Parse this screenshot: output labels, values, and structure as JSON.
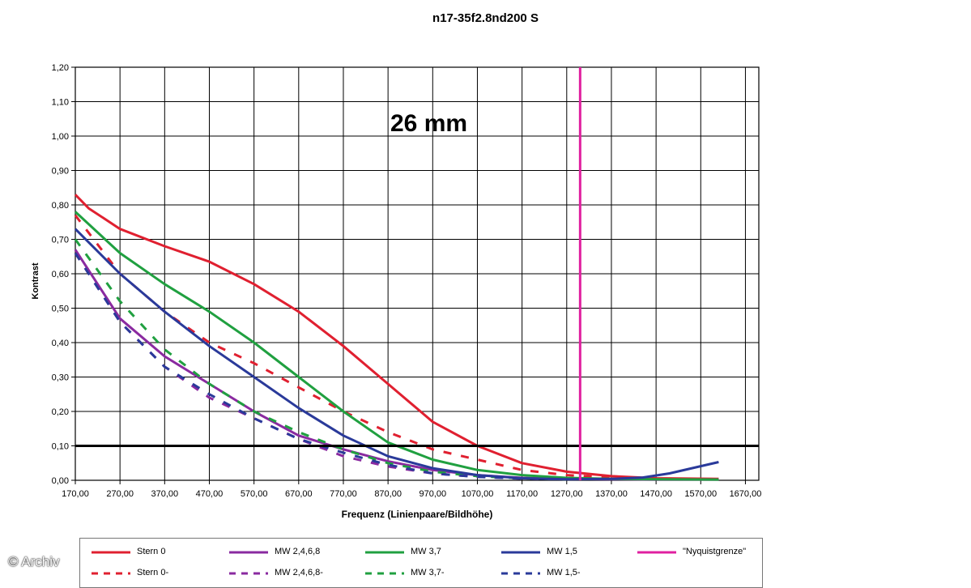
{
  "chart_data": {
    "type": "line",
    "title": "n17-35f2.8nd200 S",
    "annotation": "26 mm",
    "xlabel": "Frequenz (Linienpaare/Bildhöhe)",
    "ylabel": "Kontrast",
    "xlim": [
      170,
      1700
    ],
    "ylim": [
      0,
      1.2
    ],
    "xticks": [
      "170,00",
      "270,00",
      "370,00",
      "470,00",
      "570,00",
      "670,00",
      "770,00",
      "870,00",
      "970,00",
      "1070,00",
      "1170,00",
      "1270,00",
      "1370,00",
      "1470,00",
      "1570,00",
      "1670,00"
    ],
    "yticks": [
      "0,00",
      "0,10",
      "0,20",
      "0,30",
      "0,40",
      "0,50",
      "0,60",
      "0,70",
      "0,80",
      "0,90",
      "1,00",
      "1,10",
      "1,20"
    ],
    "grid": true,
    "legend_position": "bottom",
    "reference_lines": [
      {
        "type": "horizontal",
        "y": 0.1,
        "color": "#000000"
      },
      {
        "type": "vertical",
        "x": 1300,
        "name": "\"Nyquistgrenze\"",
        "color": "#e020a0"
      }
    ],
    "series": [
      {
        "name": "Stern 0",
        "color": "#e02030",
        "style": "solid",
        "x": [
          170,
          200,
          270,
          370,
          470,
          570,
          670,
          770,
          870,
          970,
          1070,
          1170,
          1270,
          1370,
          1470,
          1610
        ],
        "y": [
          0.83,
          0.79,
          0.73,
          0.68,
          0.635,
          0.57,
          0.49,
          0.39,
          0.28,
          0.17,
          0.1,
          0.05,
          0.025,
          0.012,
          0.006,
          0.004
        ]
      },
      {
        "name": "Stern 0-",
        "color": "#e02030",
        "style": "dashed",
        "x": [
          170,
          270,
          370,
          470,
          570,
          670,
          770,
          870,
          970,
          1070,
          1170,
          1270,
          1370,
          1470
        ],
        "y": [
          0.77,
          0.6,
          0.49,
          0.4,
          0.34,
          0.27,
          0.2,
          0.14,
          0.09,
          0.06,
          0.03,
          0.015,
          0.008,
          0.004
        ]
      },
      {
        "name": "MW 2,4,6,8",
        "color": "#8a2aa0",
        "style": "solid",
        "x": [
          170,
          270,
          370,
          470,
          570,
          670,
          770,
          870,
          970,
          1070,
          1170,
          1270,
          1370,
          1470,
          1610
        ],
        "y": [
          0.67,
          0.47,
          0.36,
          0.28,
          0.2,
          0.13,
          0.09,
          0.055,
          0.03,
          0.015,
          0.007,
          0.004,
          0.003,
          0.002,
          0.002
        ]
      },
      {
        "name": "MW 2,4,6,8-",
        "color": "#8a2aa0",
        "style": "dashed",
        "x": [
          170,
          270,
          370,
          470,
          570,
          670,
          770,
          870,
          970,
          1070,
          1170,
          1270
        ],
        "y": [
          0.66,
          0.46,
          0.33,
          0.24,
          0.18,
          0.12,
          0.07,
          0.04,
          0.02,
          0.01,
          0.005,
          0.003
        ]
      },
      {
        "name": "MW 3,7",
        "color": "#20a040",
        "style": "solid",
        "x": [
          170,
          270,
          370,
          470,
          570,
          670,
          770,
          870,
          970,
          1070,
          1170,
          1270,
          1370,
          1470,
          1610
        ],
        "y": [
          0.78,
          0.66,
          0.57,
          0.49,
          0.4,
          0.3,
          0.2,
          0.11,
          0.06,
          0.03,
          0.015,
          0.007,
          0.004,
          0.003,
          0.002
        ]
      },
      {
        "name": "MW 3,7-",
        "color": "#20a040",
        "style": "dashed",
        "x": [
          170,
          270,
          370,
          470,
          570,
          670,
          770,
          870,
          970,
          1070,
          1170,
          1270
        ],
        "y": [
          0.7,
          0.52,
          0.38,
          0.28,
          0.2,
          0.14,
          0.09,
          0.05,
          0.025,
          0.012,
          0.006,
          0.003
        ]
      },
      {
        "name": "MW 1,5",
        "color": "#2a3a9a",
        "style": "solid",
        "x": [
          170,
          270,
          370,
          470,
          570,
          670,
          770,
          870,
          970,
          1070,
          1170,
          1270,
          1370,
          1440,
          1500,
          1610
        ],
        "y": [
          0.73,
          0.6,
          0.49,
          0.39,
          0.3,
          0.21,
          0.13,
          0.07,
          0.035,
          0.015,
          0.006,
          0.003,
          0.004,
          0.008,
          0.02,
          0.053
        ]
      },
      {
        "name": "MW 1,5-",
        "color": "#2a3a9a",
        "style": "dashed",
        "x": [
          170,
          270,
          370,
          470,
          570,
          670,
          770,
          870,
          970,
          1070,
          1170,
          1270
        ],
        "y": [
          0.66,
          0.46,
          0.33,
          0.25,
          0.18,
          0.12,
          0.08,
          0.045,
          0.02,
          0.01,
          0.005,
          0.003
        ]
      }
    ]
  },
  "legend": [
    {
      "label": "Stern 0",
      "color": "#e02030",
      "style": "solid"
    },
    {
      "label": "MW 2,4,6,8",
      "color": "#8a2aa0",
      "style": "solid"
    },
    {
      "label": "MW 3,7",
      "color": "#20a040",
      "style": "solid"
    },
    {
      "label": "MW 1,5",
      "color": "#2a3a9a",
      "style": "solid"
    },
    {
      "label": "\"Nyquistgrenze\"",
      "color": "#e020a0",
      "style": "solid"
    },
    {
      "label": "Stern 0-",
      "color": "#e02030",
      "style": "dashed"
    },
    {
      "label": "MW 2,4,6,8-",
      "color": "#8a2aa0",
      "style": "dashed"
    },
    {
      "label": "MW 3,7-",
      "color": "#20a040",
      "style": "dashed"
    },
    {
      "label": "MW 1,5-",
      "color": "#2a3a9a",
      "style": "dashed"
    }
  ],
  "copyright": "© Archiv"
}
